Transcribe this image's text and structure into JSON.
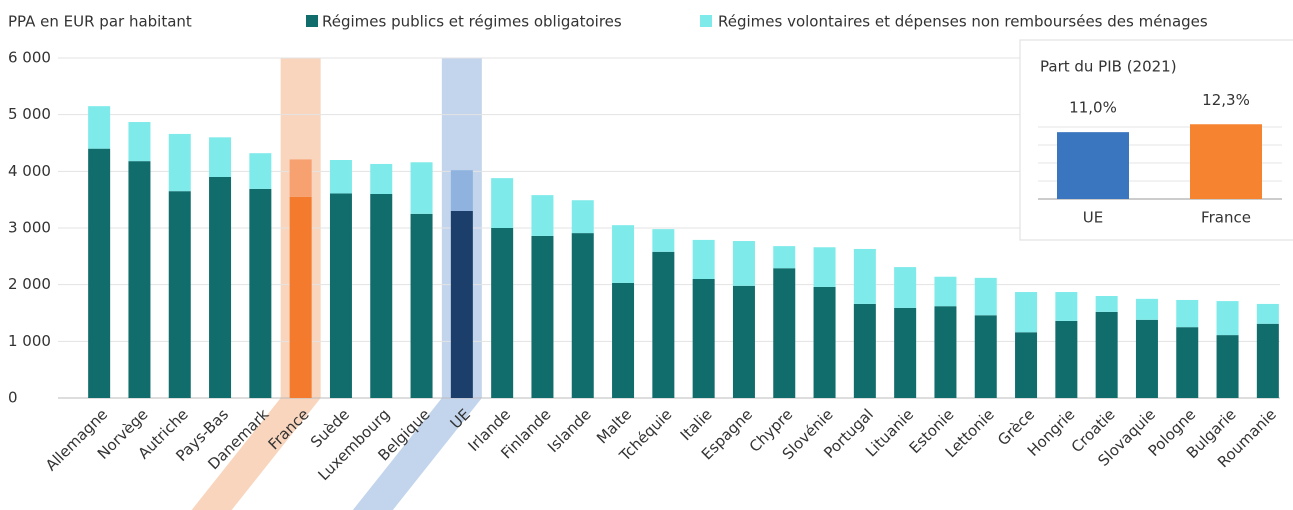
{
  "chart_data": [
    {
      "type": "stacked-bar",
      "y_label": "PPA en EUR par habitant",
      "categories": [
        "Allemagne",
        "Norvège",
        "Autriche",
        "Pays-Bas",
        "Danemark",
        "France",
        "Suède",
        "Luxembourg",
        "Belgique",
        "UE",
        "Irlande",
        "Finlande",
        "Islande",
        "Malte",
        "Tchéquie",
        "Italie",
        "Espagne",
        "Chypre",
        "Slovénie",
        "Portugal",
        "Lituanie",
        "Estonie",
        "Lettonie",
        "Grèce",
        "Hongrie",
        "Croatie",
        "Slovaquie",
        "Pologne",
        "Bulgarie",
        "Roumanie"
      ],
      "series": [
        {
          "name": "Régimes publics et régimes obligatoires",
          "color": "#116c6c",
          "values": [
            4400,
            4180,
            3650,
            3900,
            3690,
            3550,
            3610,
            3600,
            3250,
            3300,
            3000,
            2860,
            2910,
            2030,
            2580,
            2100,
            1980,
            2290,
            1960,
            1660,
            1590,
            1620,
            1460,
            1160,
            1360,
            1520,
            1380,
            1250,
            1110,
            1310
          ]
        },
        {
          "name": "Régimes volontaires et dépenses non remboursées des ménages",
          "color": "#7eeaea",
          "values": [
            750,
            690,
            1010,
            700,
            630,
            660,
            590,
            530,
            910,
            720,
            880,
            720,
            580,
            1020,
            400,
            690,
            790,
            390,
            700,
            970,
            720,
            520,
            660,
            710,
            510,
            280,
            370,
            480,
            600,
            350
          ]
        }
      ],
      "highlight": {
        "France": {
          "colors": [
            "#f47a2e",
            "#f7a070"
          ],
          "band": "#f9d5bd"
        },
        "UE": {
          "colors": [
            "#1b3f6a",
            "#8fb3de"
          ],
          "band": "#c3d5ec"
        }
      },
      "ylim": [
        0,
        6000
      ],
      "yticks": [
        0,
        {
          "value": 1000,
          "label": "1 000"
        },
        {
          "value": 2000,
          "label": "2 000"
        },
        {
          "value": 3000,
          "label": "3 000"
        },
        {
          "value": 4000,
          "label": "4 000"
        },
        {
          "value": 5000,
          "label": "5 000"
        },
        {
          "value": 6000,
          "label": "6 000"
        }
      ],
      "grid": true
    },
    {
      "type": "bar",
      "title": "Part du PIB (2021)",
      "categories": [
        "UE",
        "France"
      ],
      "values": [
        11.0,
        12.3
      ],
      "value_labels": [
        "11,0%",
        "12,3%"
      ],
      "colors": [
        "#3a75bf",
        "#f5832f"
      ],
      "ylim": [
        0,
        13
      ]
    }
  ]
}
